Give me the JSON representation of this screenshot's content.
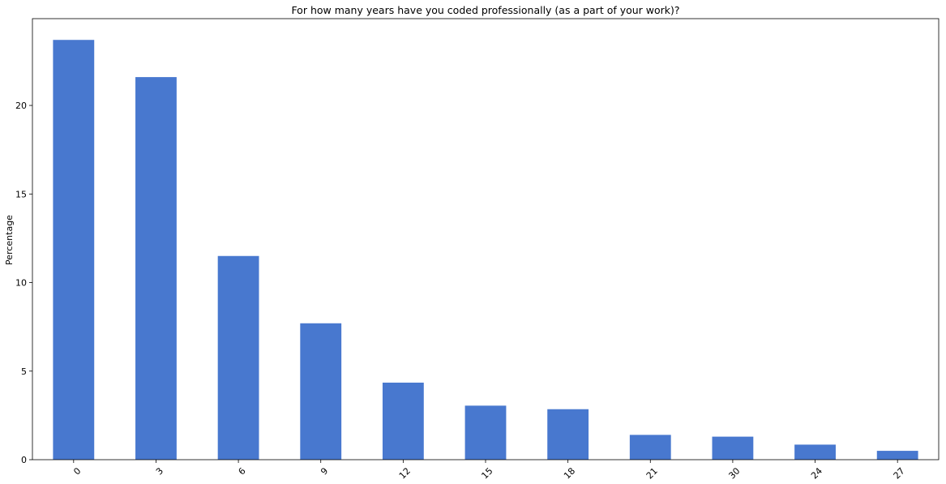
{
  "chart_data": {
    "type": "bar",
    "title": "For how many years have you coded professionally (as a part of your work)?",
    "xlabel": "",
    "ylabel": "Percentage",
    "categories": [
      "0",
      "3",
      "6",
      "9",
      "12",
      "15",
      "18",
      "21",
      "30",
      "24",
      "27"
    ],
    "values": [
      23.7,
      21.6,
      11.5,
      7.7,
      4.35,
      3.05,
      2.85,
      1.4,
      1.3,
      0.85,
      0.5
    ],
    "ylim": [
      0,
      24.9
    ],
    "yticks": [
      0,
      5,
      10,
      15,
      20
    ],
    "bar_color": "#4878cf",
    "grid": false,
    "legend": "none"
  }
}
